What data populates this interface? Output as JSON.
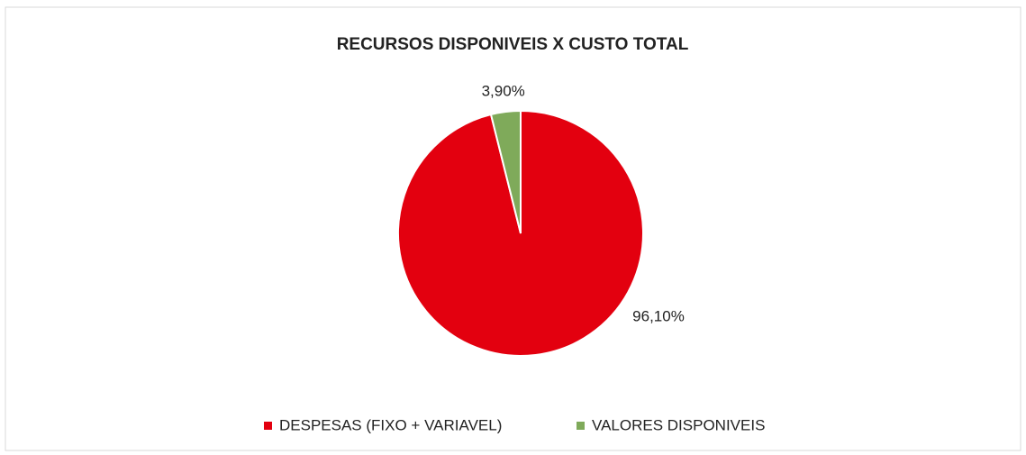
{
  "chart_data": {
    "type": "pie",
    "title": "RECURSOS DISPONIVEIS X CUSTO TOTAL",
    "categories": [
      "DESPESAS (FIXO + VARIAVEL)",
      "VALORES DISPONIVEIS"
    ],
    "values": [
      96.1,
      3.9
    ],
    "value_labels": [
      "96,10%",
      "3,90%"
    ],
    "colors": [
      "#e3000f",
      "#7faa5a"
    ],
    "legend": "bottom"
  }
}
